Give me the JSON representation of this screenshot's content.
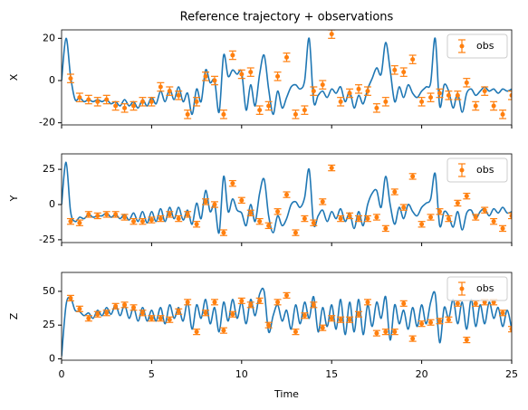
{
  "chart_data": [
    {
      "type": "line",
      "title": "Reference trajectory + observations",
      "ylabel": "X",
      "x": [
        0,
        0.25,
        0.5,
        0.75,
        1,
        1.25,
        1.5,
        1.75,
        2,
        2.25,
        2.5,
        2.75,
        3,
        3.25,
        3.5,
        3.75,
        4,
        4.25,
        4.5,
        4.75,
        5,
        5.25,
        5.5,
        5.75,
        6,
        6.25,
        6.5,
        6.75,
        7,
        7.25,
        7.5,
        7.75,
        8,
        8.25,
        8.5,
        8.75,
        9,
        9.25,
        9.5,
        9.75,
        10,
        10.25,
        10.5,
        10.75,
        11,
        11.25,
        11.5,
        11.75,
        12,
        12.25,
        12.5,
        12.75,
        13,
        13.25,
        13.5,
        13.75,
        14,
        14.25,
        14.5,
        14.75,
        15,
        15.25,
        15.5,
        15.75,
        16,
        16.25,
        16.5,
        16.75,
        17,
        17.25,
        17.5,
        17.75,
        18,
        18.25,
        18.5,
        18.75,
        19,
        19.25,
        19.5,
        19.75,
        20,
        20.25,
        20.5,
        20.75,
        21,
        21.25,
        21.5,
        21.75,
        22,
        22.25,
        22.5,
        22.75,
        23,
        23.25,
        23.5,
        23.75,
        24,
        24.25,
        24.5,
        24.75,
        25
      ],
      "xlim": [
        0,
        25
      ],
      "xticks": [
        0,
        5,
        10,
        15,
        20,
        25
      ],
      "ylim": [
        -21,
        24
      ],
      "yticks": [
        -20,
        0,
        20
      ],
      "legend": "upper right",
      "series": [
        {
          "type": "line",
          "color": "#1f77b4",
          "values": [
            0,
            20,
            2,
            -9,
            -8,
            -10,
            -9,
            -10,
            -9,
            -10,
            -9,
            -11,
            -10,
            -12,
            -9,
            -12,
            -10,
            -13,
            -9,
            -12,
            -8,
            -11,
            -5,
            -10,
            -4,
            -9,
            -3,
            -10,
            -6,
            -16,
            -4,
            -10,
            5,
            -1,
            0,
            -15,
            12,
            2,
            5,
            3,
            4,
            -14,
            -2,
            -12,
            3,
            12,
            -4,
            -16,
            -5,
            -13,
            -8,
            -3,
            -2,
            -4,
            0,
            20,
            -10,
            -7,
            -5,
            -8,
            -4,
            -6,
            -3,
            -10,
            -5,
            -13,
            -7,
            -11,
            -4,
            1,
            6,
            3,
            18,
            5,
            -10,
            -3,
            -8,
            -2,
            -6,
            -8,
            -5,
            -3,
            -1,
            20,
            -12,
            -2,
            -5,
            -13,
            -6,
            -15,
            -6,
            -4,
            -7,
            -5,
            -3,
            -5,
            -4,
            -6,
            -4,
            -5,
            -4
          ]
        },
        {
          "type": "errorbar",
          "name": "obs",
          "color": "#ff7f0e",
          "error": 2,
          "x": [
            0.5,
            1,
            1.5,
            2,
            2.5,
            3,
            3.5,
            4,
            4.5,
            5,
            5.5,
            6,
            6.5,
            7,
            7.5,
            8,
            8.5,
            9,
            9.5,
            10,
            10.5,
            11,
            11.5,
            12,
            12.5,
            13,
            13.5,
            14,
            14.5,
            15,
            15.5,
            16,
            16.5,
            17,
            17.5,
            18,
            18.5,
            19,
            19.5,
            20,
            20.5,
            21,
            21.5,
            22,
            22.5,
            23,
            23.5,
            24,
            24.5,
            25
          ],
          "values": [
            1,
            -8,
            -9,
            -10,
            -9,
            -12,
            -13,
            -12,
            -10,
            -10,
            -3,
            -5,
            -7,
            -16,
            -10,
            2,
            0,
            -16,
            12,
            3,
            4,
            -14,
            -12,
            2,
            11,
            -16,
            -14,
            -5,
            -2,
            22,
            -10,
            -6,
            -4,
            -5,
            -13,
            -10,
            5,
            4,
            10,
            -10,
            -8,
            -6,
            -7,
            -7,
            -1,
            -12,
            -5,
            -12,
            -16,
            -7
          ]
        }
      ]
    },
    {
      "type": "line",
      "ylabel": "Y",
      "x": [
        0,
        0.25,
        0.5,
        0.75,
        1,
        1.25,
        1.5,
        1.75,
        2,
        2.25,
        2.5,
        2.75,
        3,
        3.25,
        3.5,
        3.75,
        4,
        4.25,
        4.5,
        4.75,
        5,
        5.25,
        5.5,
        5.75,
        6,
        6.25,
        6.5,
        6.75,
        7,
        7.25,
        7.5,
        7.75,
        8,
        8.25,
        8.5,
        8.75,
        9,
        9.25,
        9.5,
        9.75,
        10,
        10.25,
        10.5,
        10.75,
        11,
        11.25,
        11.5,
        11.75,
        12,
        12.25,
        12.5,
        12.75,
        13,
        13.25,
        13.5,
        13.75,
        14,
        14.25,
        14.5,
        14.75,
        15,
        15.25,
        15.5,
        15.75,
        16,
        16.25,
        16.5,
        16.75,
        17,
        17.25,
        17.5,
        17.75,
        18,
        18.25,
        18.5,
        18.75,
        19,
        19.25,
        19.5,
        19.75,
        20,
        20.25,
        20.5,
        20.75,
        21,
        21.25,
        21.5,
        21.75,
        22,
        22.25,
        22.5,
        22.75,
        23,
        23.25,
        23.5,
        23.75,
        24,
        24.25,
        24.5,
        24.75,
        25
      ],
      "xlim": [
        0,
        25
      ],
      "xticks": [
        0,
        5,
        10,
        15,
        20,
        25
      ],
      "ylim": [
        -27,
        36
      ],
      "yticks": [
        -25,
        0,
        25
      ],
      "legend": "upper right",
      "series": [
        {
          "type": "line",
          "color": "#1f77b4",
          "values": [
            0,
            30,
            -5,
            -12,
            -9,
            -10,
            -7,
            -9,
            -8,
            -8,
            -6,
            -9,
            -7,
            -10,
            -7,
            -11,
            -6,
            -12,
            -5,
            -13,
            -5,
            -12,
            -3,
            -12,
            -2,
            -10,
            -2,
            -11,
            -4,
            -14,
            1,
            -10,
            10,
            -5,
            0,
            -20,
            20,
            -5,
            4,
            -4,
            -6,
            -15,
            0,
            -12,
            8,
            18,
            -8,
            -20,
            -8,
            -15,
            -10,
            0,
            2,
            -2,
            5,
            25,
            -14,
            -8,
            -4,
            -12,
            -5,
            -10,
            -3,
            -12,
            -6,
            -17,
            -5,
            -15,
            0,
            8,
            10,
            -2,
            20,
            0,
            -14,
            -2,
            -10,
            0,
            -5,
            -8,
            -2,
            1,
            4,
            22,
            -15,
            -5,
            -8,
            -16,
            -5,
            -18,
            -6,
            -4,
            -10,
            -5,
            -3,
            -8,
            -3,
            -6,
            -2,
            -6,
            -5
          ]
        },
        {
          "type": "errorbar",
          "name": "obs",
          "color": "#ff7f0e",
          "error": 2,
          "x": [
            0.5,
            1,
            1.5,
            2,
            2.5,
            3,
            3.5,
            4,
            4.5,
            5,
            5.5,
            6,
            6.5,
            7,
            7.5,
            8,
            8.5,
            9,
            9.5,
            10,
            10.5,
            11,
            11.5,
            12,
            12.5,
            13,
            13.5,
            14,
            14.5,
            15,
            15.5,
            16,
            16.5,
            17,
            17.5,
            18,
            18.5,
            19,
            19.5,
            20,
            20.5,
            21,
            21.5,
            22,
            22.5,
            23,
            23.5,
            24,
            24.5,
            25
          ],
          "values": [
            -12,
            -13,
            -7,
            -8,
            -7,
            -7,
            -9,
            -12,
            -12,
            -11,
            -10,
            -7,
            -10,
            -7,
            -14,
            2,
            0,
            -20,
            15,
            3,
            -6,
            -12,
            -15,
            -5,
            7,
            -20,
            -10,
            -13,
            2,
            26,
            -10,
            -8,
            -10,
            -10,
            -9,
            -17,
            9,
            -2,
            20,
            -14,
            -9,
            -5,
            -10,
            1,
            6,
            -9,
            -4,
            -12,
            -17,
            -8
          ]
        }
      ]
    },
    {
      "type": "line",
      "ylabel": "Z",
      "xlabel": "Time",
      "x": [
        0,
        0.25,
        0.5,
        0.75,
        1,
        1.25,
        1.5,
        1.75,
        2,
        2.25,
        2.5,
        2.75,
        3,
        3.25,
        3.5,
        3.75,
        4,
        4.25,
        4.5,
        4.75,
        5,
        5.25,
        5.5,
        5.75,
        6,
        6.25,
        6.5,
        6.75,
        7,
        7.25,
        7.5,
        7.75,
        8,
        8.25,
        8.5,
        8.75,
        9,
        9.25,
        9.5,
        9.75,
        10,
        10.25,
        10.5,
        10.75,
        11,
        11.25,
        11.5,
        11.75,
        12,
        12.25,
        12.5,
        12.75,
        13,
        13.25,
        13.5,
        13.75,
        14,
        14.25,
        14.5,
        14.75,
        15,
        15.25,
        15.5,
        15.75,
        16,
        16.25,
        16.5,
        16.75,
        17,
        17.25,
        17.5,
        17.75,
        18,
        18.25,
        18.5,
        18.75,
        19,
        19.25,
        19.5,
        19.75,
        20,
        20.25,
        20.5,
        20.75,
        21,
        21.25,
        21.5,
        21.75,
        22,
        22.25,
        22.5,
        22.75,
        23,
        23.25,
        23.5,
        23.75,
        24,
        24.25,
        24.5,
        24.75,
        25
      ],
      "xlim": [
        0,
        25
      ],
      "xticks": [
        0,
        5,
        10,
        15,
        20,
        25
      ],
      "ylim": [
        -1,
        64
      ],
      "yticks": [
        0,
        25,
        50
      ],
      "legend": "upper right",
      "series": [
        {
          "type": "line",
          "color": "#1f77b4",
          "values": [
            2,
            40,
            45,
            36,
            35,
            32,
            34,
            30,
            36,
            32,
            38,
            33,
            40,
            32,
            40,
            30,
            38,
            28,
            38,
            28,
            36,
            28,
            38,
            26,
            40,
            30,
            38,
            28,
            42,
            22,
            40,
            30,
            44,
            26,
            38,
            20,
            42,
            28,
            44,
            30,
            42,
            26,
            44,
            32,
            48,
            50,
            20,
            32,
            40,
            28,
            36,
            22,
            40,
            26,
            42,
            30,
            46,
            20,
            38,
            24,
            40,
            22,
            44,
            18,
            42,
            20,
            44,
            18,
            40,
            24,
            42,
            30,
            46,
            14,
            40,
            26,
            36,
            22,
            38,
            24,
            40,
            26,
            42,
            48,
            12,
            38,
            30,
            44,
            26,
            42,
            22,
            44,
            24,
            40,
            26,
            42,
            30,
            38,
            24,
            36,
            22
          ]
        },
        {
          "type": "errorbar",
          "name": "obs",
          "color": "#ff7f0e",
          "error": 2,
          "x": [
            0.5,
            1,
            1.5,
            2,
            2.5,
            3,
            3.5,
            4,
            4.5,
            5,
            5.5,
            6,
            6.5,
            7,
            7.5,
            8,
            8.5,
            9,
            9.5,
            10,
            10.5,
            11,
            11.5,
            12,
            12.5,
            13,
            13.5,
            14,
            14.5,
            15,
            15.5,
            16,
            16.5,
            17,
            17.5,
            18,
            18.5,
            19,
            19.5,
            20,
            20.5,
            21,
            21.5,
            22,
            22.5,
            23,
            23.5,
            24,
            24.5,
            25
          ],
          "values": [
            45,
            37,
            30,
            33,
            34,
            39,
            40,
            38,
            34,
            30,
            30,
            29,
            35,
            42,
            20,
            34,
            42,
            21,
            33,
            43,
            40,
            43,
            25,
            42,
            47,
            20,
            32,
            40,
            23,
            30,
            29,
            29,
            33,
            42,
            19,
            20,
            20,
            41,
            15,
            26,
            27,
            28,
            29,
            41,
            14,
            41,
            42,
            42,
            34,
            22
          ]
        }
      ]
    }
  ]
}
